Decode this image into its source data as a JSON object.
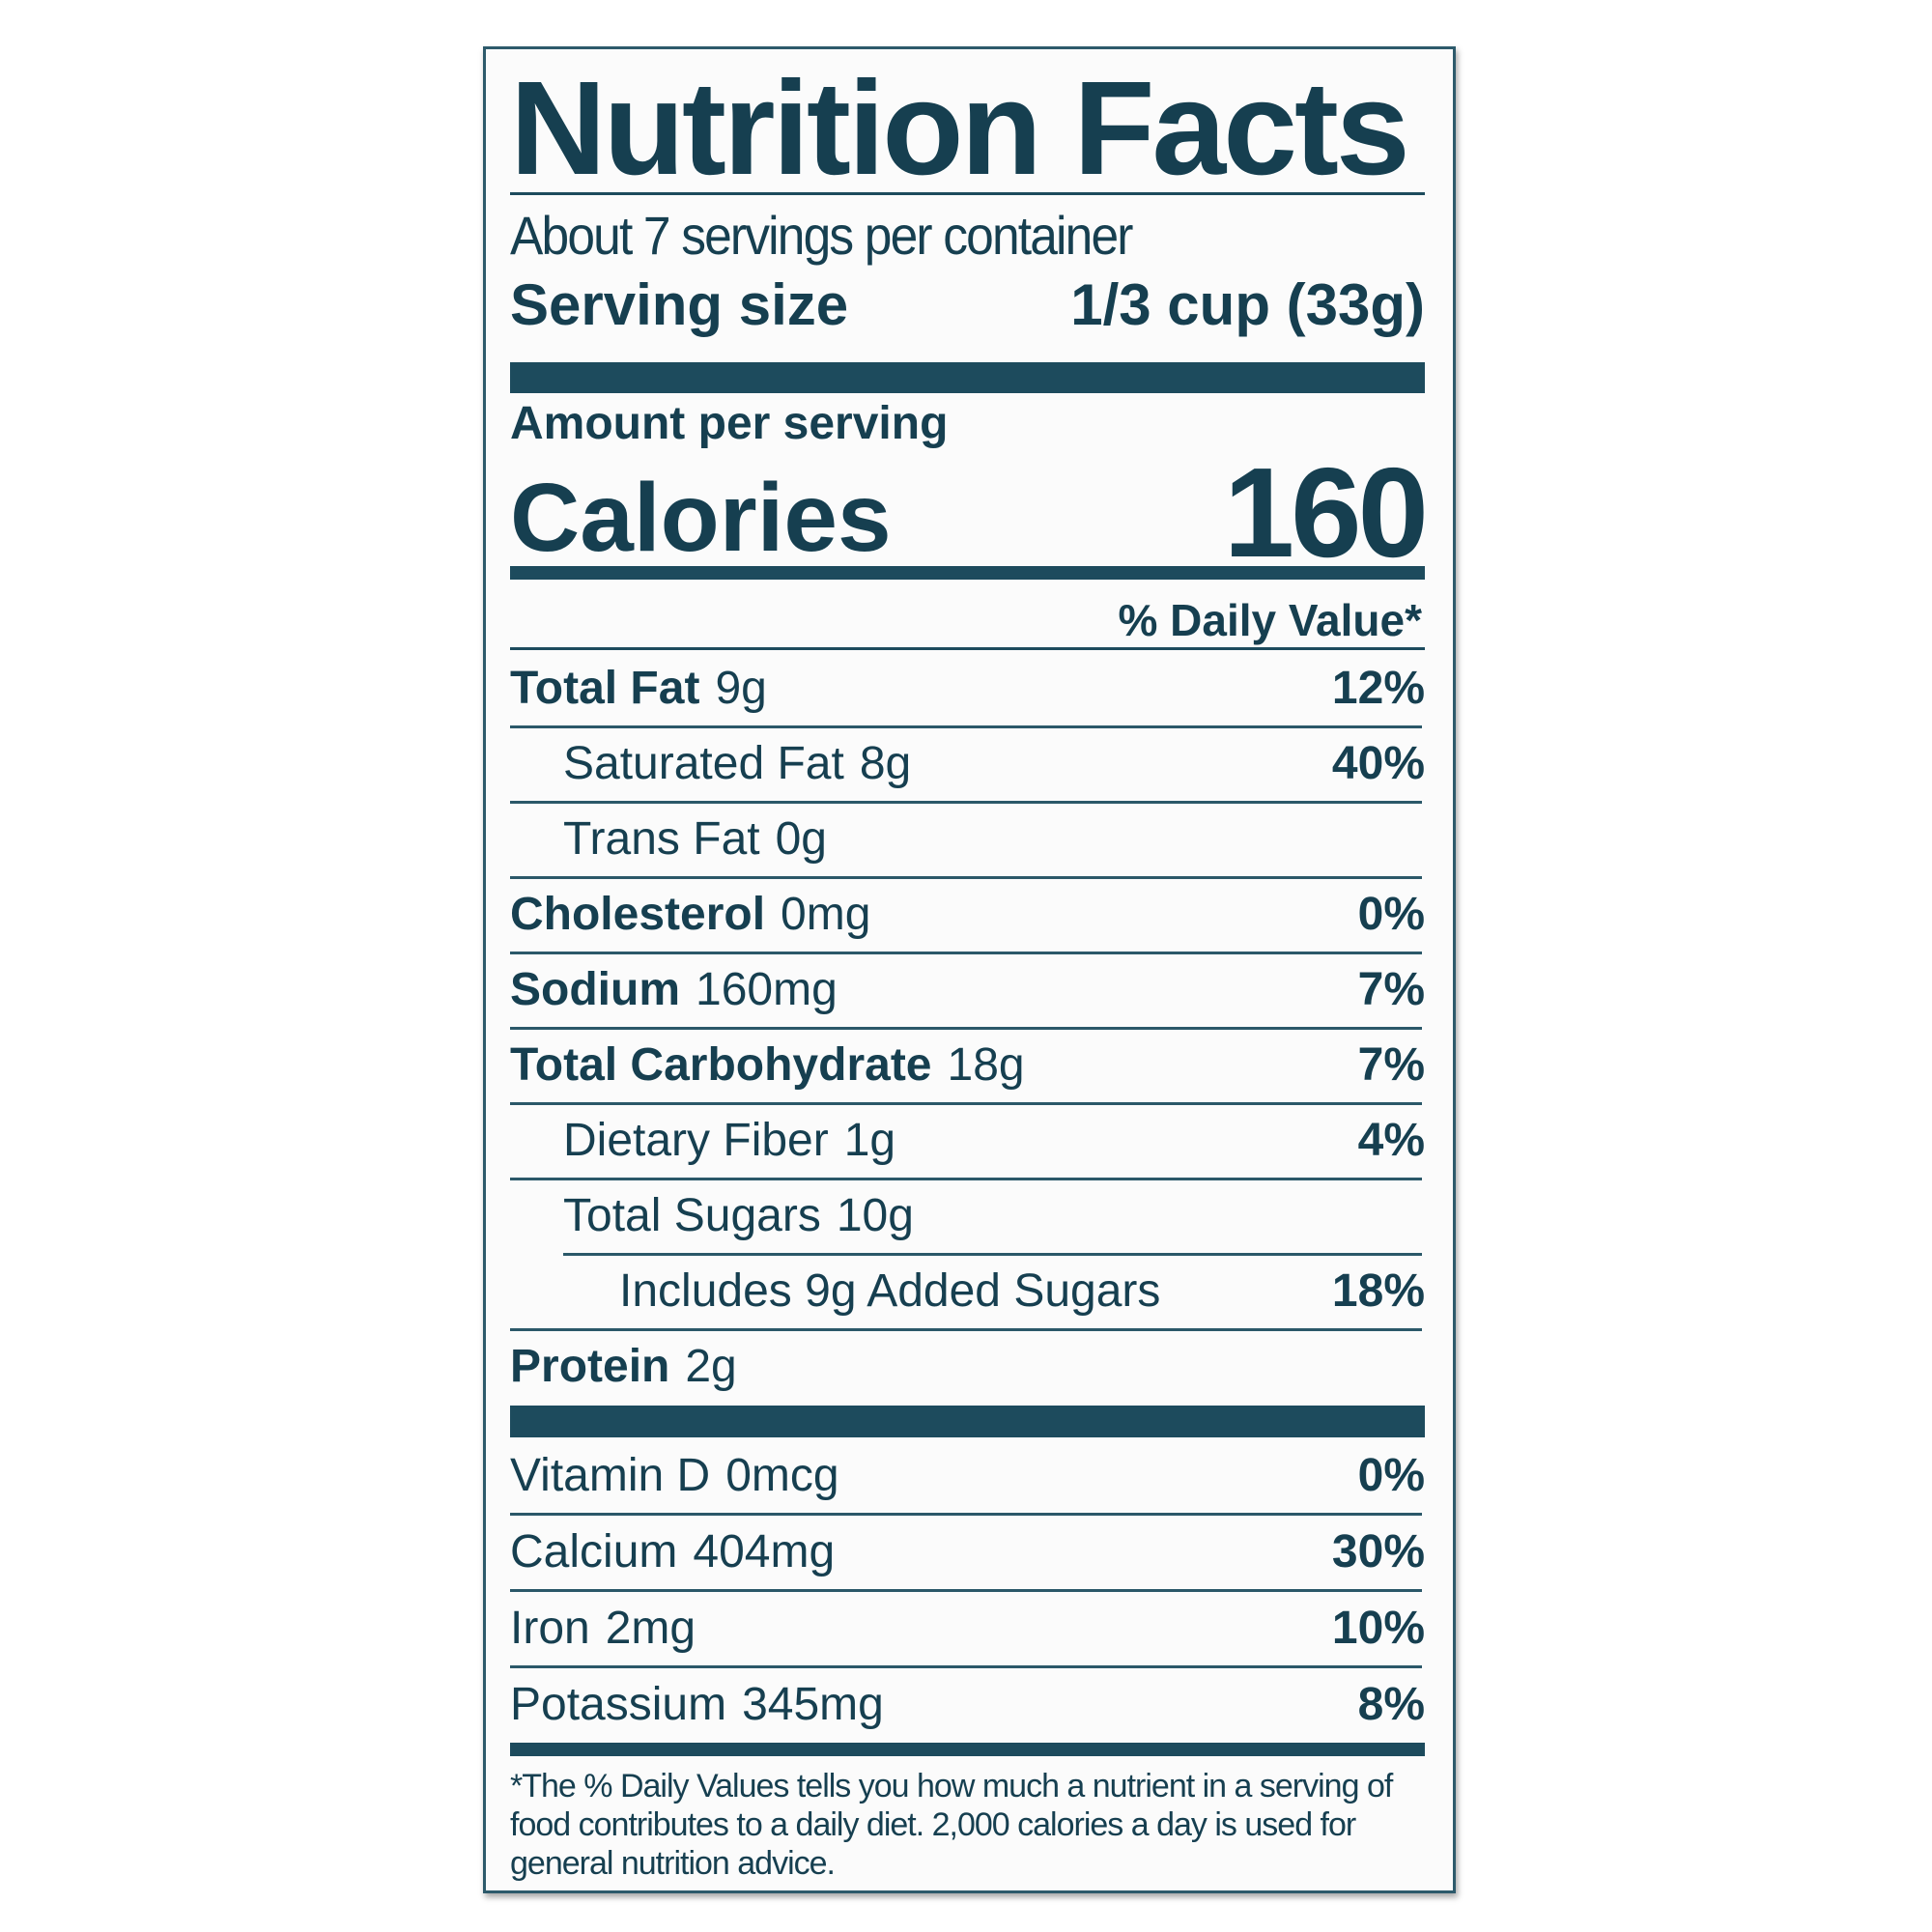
{
  "title": "Nutrition Facts",
  "servings_per_container": "About 7 servings per container",
  "serving_size_label": "Serving size",
  "serving_size_value": "1/3 cup (33g)",
  "amount_per_serving": "Amount per serving",
  "calories_label": "Calories",
  "calories_value": "160",
  "daily_value_header": "% Daily Value*",
  "nutrients": [
    {
      "name": "Total Fat",
      "amount": "9g",
      "dv": "12%",
      "bold": true,
      "indent": 0
    },
    {
      "name": "Saturated Fat",
      "amount": "8g",
      "dv": "40%",
      "bold": false,
      "indent": 1
    },
    {
      "name": "Trans Fat",
      "amount": "0g",
      "dv": "",
      "bold": false,
      "indent": 1
    },
    {
      "name": "Cholesterol",
      "amount": "0mg",
      "dv": "0%",
      "bold": true,
      "indent": 0
    },
    {
      "name": "Sodium",
      "amount": "160mg",
      "dv": "7%",
      "bold": true,
      "indent": 0
    },
    {
      "name": "Total Carbohydrate",
      "amount": "18g",
      "dv": "7%",
      "bold": true,
      "indent": 0
    },
    {
      "name": "Dietary Fiber",
      "amount": "1g",
      "dv": "4%",
      "bold": false,
      "indent": 1
    },
    {
      "name": "Total Sugars",
      "amount": "10g",
      "dv": "",
      "bold": false,
      "indent": 1
    },
    {
      "name": "Includes 9g Added Sugars",
      "amount": "",
      "dv": "18%",
      "bold": false,
      "indent": 2
    },
    {
      "name": "Protein",
      "amount": "2g",
      "dv": "",
      "bold": true,
      "indent": 0
    }
  ],
  "vitamins": [
    {
      "name": "Vitamin D",
      "amount": "0mcg",
      "dv": "0%"
    },
    {
      "name": "Calcium",
      "amount": "404mg",
      "dv": "30%"
    },
    {
      "name": "Iron",
      "amount": "2mg",
      "dv": "10%"
    },
    {
      "name": "Potassium",
      "amount": "345mg",
      "dv": "8%"
    }
  ],
  "footnote": "*The % Daily Values tells you how much a nutrient in a serving of food contributes to a daily diet. 2,000 calories a day is used for general nutrition advice.",
  "colors": {
    "ink": "#163f50",
    "background": "#fbfbfb"
  }
}
